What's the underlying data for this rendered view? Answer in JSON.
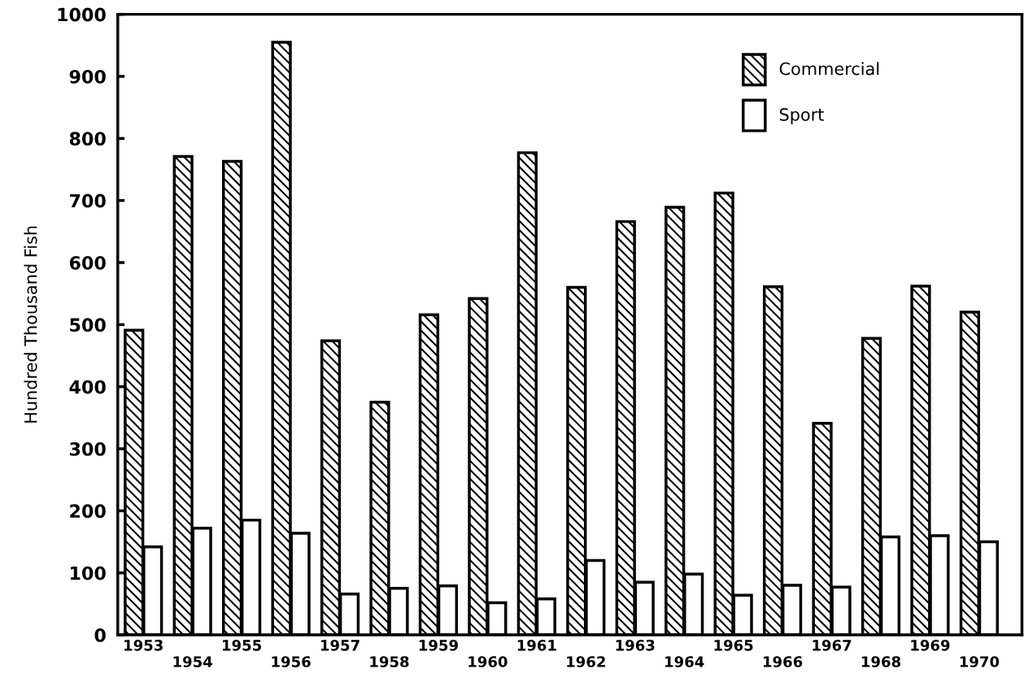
{
  "chart_data": {
    "type": "bar",
    "ylabel": "Hundred Thousand Fish",
    "categories": [
      "1953",
      "1954",
      "1955",
      "1956",
      "1957",
      "1958",
      "1959",
      "1960",
      "1961",
      "1962",
      "1963",
      "1964",
      "1965",
      "1966",
      "1967",
      "1968",
      "1969",
      "1970"
    ],
    "series": [
      {
        "name": "Commercial",
        "color": "#000000",
        "values": [
          491,
          771,
          763,
          955,
          474,
          375,
          516,
          542,
          777,
          560,
          666,
          689,
          712,
          561,
          341,
          478,
          562,
          520
        ]
      },
      {
        "name": "Sport",
        "color": "#ffffff",
        "values": [
          142,
          172,
          185,
          164,
          66,
          75,
          79,
          52,
          58,
          120,
          85,
          98,
          64,
          80,
          77,
          158,
          160,
          150
        ]
      }
    ],
    "ylim": [
      0,
      1000
    ],
    "yticks": [
      0,
      100,
      200,
      300,
      400,
      500,
      600,
      700,
      800,
      900,
      1000
    ],
    "grid": false,
    "legend": "top right"
  }
}
